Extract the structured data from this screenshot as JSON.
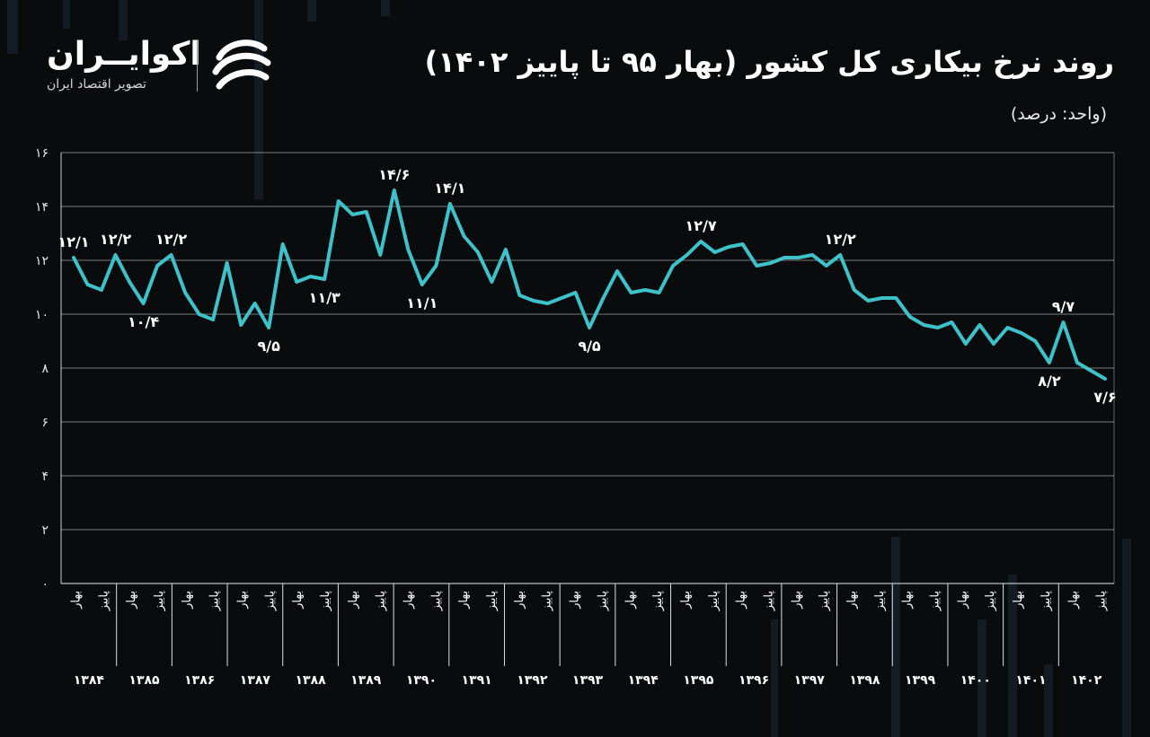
{
  "header": {
    "title": "روند نرخ بیکاری کل کشور (بهار ۹۵ تا پاییز ۱۴۰۲)",
    "unit": "(واحد: درصد)"
  },
  "logo": {
    "name": "اکوایــران",
    "tagline": "تصویر اقتصاد ایران",
    "icon": "ecoiran-swirl-icon"
  },
  "colors": {
    "background": "#0a0b0d",
    "line": "#3fc1c9",
    "grid": "#ffffff",
    "text": "#ffffff"
  },
  "chart_data": {
    "type": "line",
    "title": "روند نرخ بیکاری کل کشور (بهار ۹۵ تا پاییز ۱۴۰۲)",
    "ylabel": "(واحد: درصد)",
    "ylim": [
      0,
      16
    ],
    "yticks": [
      "0",
      "2",
      "4",
      "6",
      "8",
      "10",
      "12",
      "14",
      "16"
    ],
    "grid": true,
    "quarter_labels": [
      "بهار",
      "پاییز"
    ],
    "years": [
      "1384",
      "1385",
      "1386",
      "1387",
      "1388",
      "1389",
      "1390",
      "1391",
      "1392",
      "1393",
      "1394",
      "1395",
      "1396",
      "1397",
      "1398",
      "1399",
      "1400",
      "1401",
      "1402"
    ],
    "series": [
      {
        "values": [
          12.1,
          11.1,
          10.9,
          12.2,
          11.2,
          10.4,
          11.8,
          12.2,
          10.8,
          10.0,
          9.8,
          11.9,
          9.6,
          10.4,
          9.5,
          12.6,
          11.2,
          11.4,
          11.3,
          14.2,
          13.7,
          13.8,
          12.2,
          14.6,
          12.4,
          11.1,
          11.8,
          14.1,
          12.9,
          12.3,
          11.2,
          12.4,
          10.7,
          10.5,
          10.4,
          10.6,
          10.8,
          9.5,
          10.6,
          11.6,
          10.8,
          10.9,
          10.8,
          11.8,
          12.2,
          12.7,
          12.3,
          12.5,
          12.6,
          11.8,
          11.9,
          12.1,
          12.1,
          12.2,
          11.8,
          12.2,
          10.9,
          10.5,
          10.6,
          10.6,
          9.9,
          9.6,
          9.5,
          9.7,
          8.9,
          9.6,
          8.9,
          9.5,
          9.3,
          9.0,
          8.2,
          9.7,
          8.2,
          7.9,
          7.6
        ]
      }
    ],
    "annotations": [
      {
        "index": 0,
        "text": "۱۲/۱",
        "pos": "above"
      },
      {
        "index": 3,
        "text": "۱۲/۲",
        "pos": "above"
      },
      {
        "index": 5,
        "text": "۱۰/۴",
        "pos": "below"
      },
      {
        "index": 7,
        "text": "۱۲/۲",
        "pos": "above"
      },
      {
        "index": 14,
        "text": "۹/۵",
        "pos": "below"
      },
      {
        "index": 18,
        "text": "۱۱/۳",
        "pos": "below"
      },
      {
        "index": 23,
        "text": "۱۴/۶",
        "pos": "above"
      },
      {
        "index": 25,
        "text": "۱۱/۱",
        "pos": "below"
      },
      {
        "index": 27,
        "text": "۱۴/۱",
        "pos": "above"
      },
      {
        "index": 37,
        "text": "۹/۵",
        "pos": "below"
      },
      {
        "index": 45,
        "text": "۱۲/۷",
        "pos": "above"
      },
      {
        "index": 55,
        "text": "۱۲/۲",
        "pos": "above"
      },
      {
        "index": 70,
        "text": "۸/۲",
        "pos": "below"
      },
      {
        "index": 71,
        "text": "۹/۷",
        "pos": "above"
      },
      {
        "index": 74,
        "text": "۷/۶",
        "pos": "below"
      }
    ]
  }
}
